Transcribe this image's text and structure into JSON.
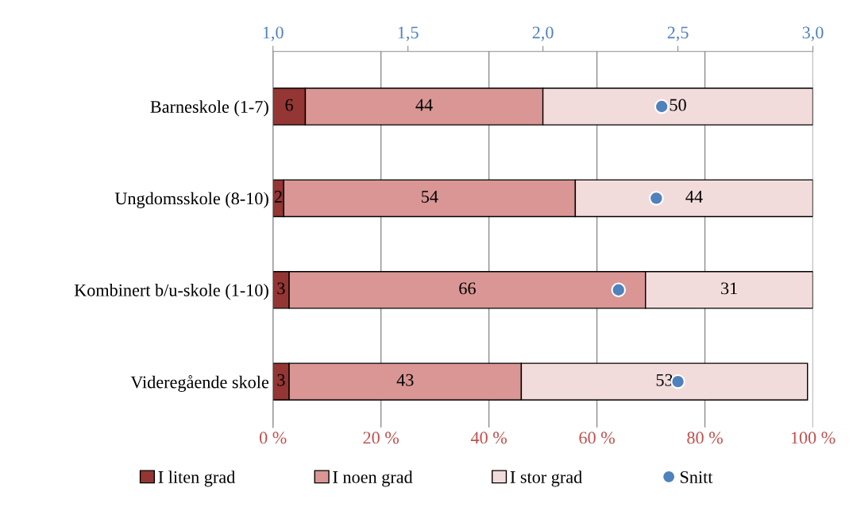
{
  "chart_data": {
    "type": "bar",
    "orientation": "horizontal",
    "stacked": true,
    "categories": [
      "Barneskole (1-7)",
      "Ungdomsskole (8-10)",
      "Kombinert b/u-skole (1-10)",
      "Videregående skole"
    ],
    "series": [
      {
        "name": "I liten grad",
        "color": "#943634",
        "values": [
          6,
          2,
          3,
          3
        ],
        "value_labels": [
          "6",
          "2",
          "3",
          "3"
        ]
      },
      {
        "name": "I noen grad",
        "color": "#d99694",
        "values": [
          44,
          54,
          66,
          43
        ],
        "value_labels": [
          "44",
          "54",
          "66",
          "43"
        ]
      },
      {
        "name": "I stor grad",
        "color": "#f2dcdb",
        "values": [
          50,
          44,
          31,
          53
        ],
        "value_labels": [
          "50",
          "44",
          "31",
          "53"
        ]
      },
      {
        "name": "Snitt",
        "type": "scatter",
        "axis": "x2",
        "color": "#4f81bd",
        "values": [
          2.44,
          2.42,
          2.28,
          2.5
        ]
      }
    ],
    "xlim": [
      0,
      100
    ],
    "xticks": [
      {
        "value": 0,
        "label": "0 %"
      },
      {
        "value": 20,
        "label": "20 %"
      },
      {
        "value": 40,
        "label": "40 %"
      },
      {
        "value": 60,
        "label": "60 %"
      },
      {
        "value": 80,
        "label": "80 %"
      },
      {
        "value": 100,
        "label": "100 %"
      }
    ],
    "x2lim": [
      1,
      3
    ],
    "x2ticks": [
      {
        "value": 1,
        "label": "1,0"
      },
      {
        "value": 1.5,
        "label": "1,5"
      },
      {
        "value": 2,
        "label": "2,0"
      },
      {
        "value": 2.5,
        "label": "2,5"
      },
      {
        "value": 3,
        "label": "3,0"
      }
    ],
    "grid": "x",
    "legend": "bottom",
    "marker": "circle"
  }
}
